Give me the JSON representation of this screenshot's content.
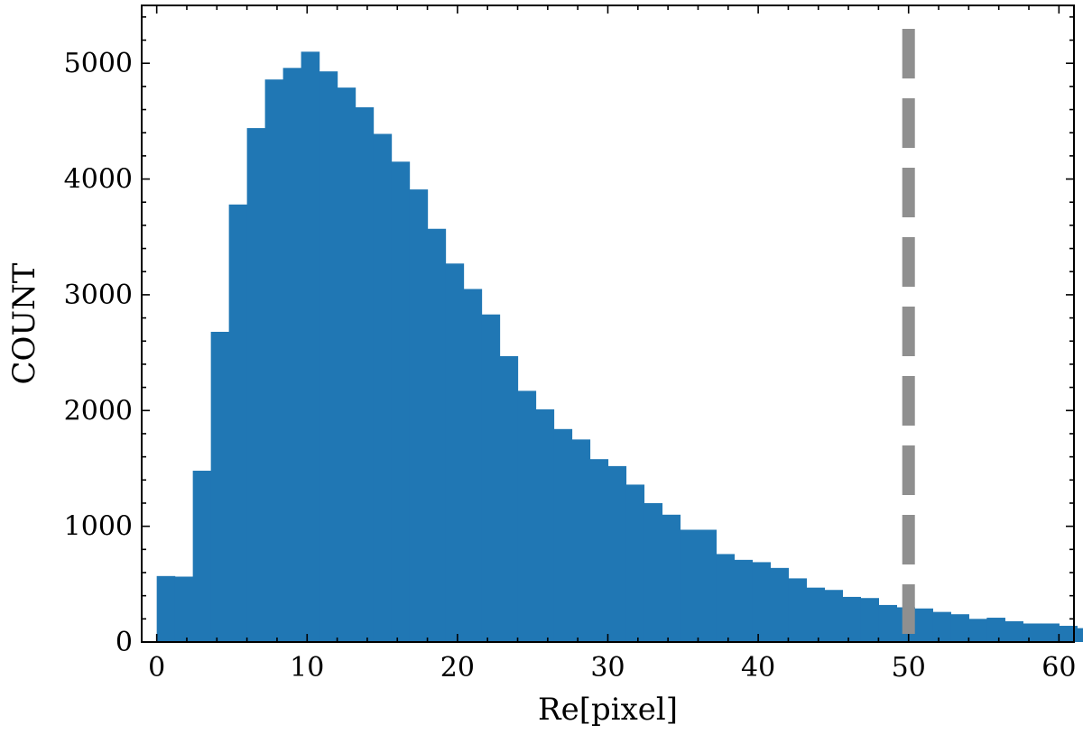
{
  "chart_data": {
    "type": "bar",
    "title": "",
    "xlabel": "Re[pixel]",
    "ylabel": "COUNT",
    "xlim": [
      -1,
      61
    ],
    "ylim": [
      0,
      5500
    ],
    "bin_width": 1.2,
    "bin_start": 0,
    "xticks": [
      0,
      10,
      20,
      30,
      40,
      50,
      60
    ],
    "yticks": [
      0,
      1000,
      2000,
      3000,
      4000,
      5000
    ],
    "bar_color": "#2077b4",
    "grid": false,
    "legend": "none",
    "values": [
      570,
      565,
      1480,
      2680,
      3780,
      4440,
      4860,
      4960,
      5100,
      4930,
      4790,
      4620,
      4390,
      4150,
      3910,
      3570,
      3270,
      3050,
      2830,
      2470,
      2170,
      2010,
      1840,
      1750,
      1580,
      1520,
      1360,
      1200,
      1100,
      970,
      970,
      760,
      710,
      690,
      640,
      550,
      470,
      450,
      390,
      380,
      320,
      300,
      290,
      260,
      240,
      200,
      210,
      180,
      160,
      160,
      140,
      120,
      120,
      130,
      110,
      100,
      90,
      90,
      90,
      80
    ],
    "annotations": [
      {
        "type": "vline",
        "x": 50,
        "color": "#8f8f8f",
        "style": "dashed"
      }
    ]
  }
}
